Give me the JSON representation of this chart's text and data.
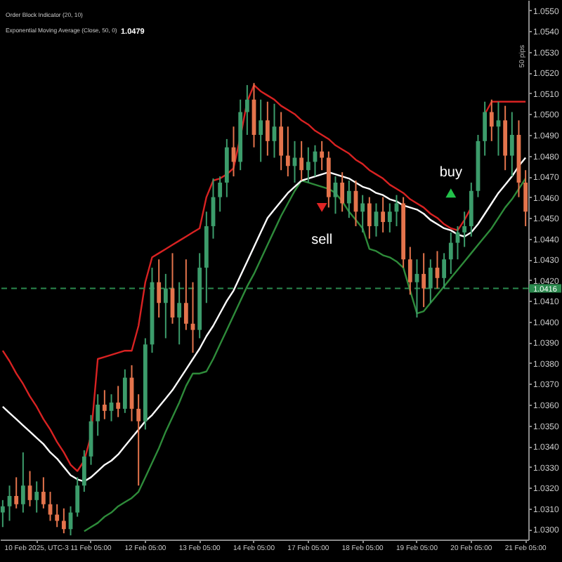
{
  "chart_data": {
    "type": "candlestick",
    "categories": [
      null,
      null,
      null,
      null,
      null,
      "10 Feb 2025, UTC-3",
      null,
      null,
      null,
      null,
      null,
      null,
      null,
      "11 Feb 05:00",
      null,
      null,
      null,
      null,
      null,
      null,
      null,
      "12 Feb 05:00",
      null,
      null,
      null,
      null,
      null,
      null,
      null,
      "13 Feb 05:00",
      null,
      null,
      null,
      null,
      null,
      null,
      null,
      "14 Feb 05:00",
      null,
      null,
      null,
      null,
      null,
      null,
      null,
      "17 Feb 05:00",
      null,
      null,
      null,
      null,
      null,
      null,
      null,
      "18 Feb 05:00",
      null,
      null,
      null,
      null,
      null,
      null,
      null,
      "19 Feb 05:00",
      null,
      null,
      null,
      null,
      null,
      null,
      null,
      "20 Feb 05:00",
      null,
      null,
      null,
      null,
      null,
      null,
      null,
      "21 Feb 05:00"
    ],
    "ohlc": [
      [
        1.0308,
        1.0314,
        1.0301,
        1.0311
      ],
      [
        1.0311,
        1.0321,
        1.0304,
        1.0316
      ],
      [
        1.0316,
        1.0325,
        1.031,
        1.0312
      ],
      [
        1.0312,
        1.0337,
        1.0308,
        1.0321
      ],
      [
        1.0321,
        1.0328,
        1.0311,
        1.0314
      ],
      [
        1.0314,
        1.0323,
        1.0308,
        1.0318
      ],
      [
        1.0318,
        1.0325,
        1.031,
        1.0312
      ],
      [
        1.0312,
        1.0318,
        1.0304,
        1.0307
      ],
      [
        1.0307,
        1.0312,
        1.0301,
        1.0304
      ],
      [
        1.0304,
        1.031,
        1.0298,
        1.03
      ],
      [
        1.03,
        1.0311,
        1.0297,
        1.0308
      ],
      [
        1.0308,
        1.0325,
        1.0306,
        1.0321
      ],
      [
        1.0321,
        1.0338,
        1.0318,
        1.0335
      ],
      [
        1.0335,
        1.0355,
        1.0331,
        1.0352
      ],
      [
        1.0352,
        1.0365,
        1.0345,
        1.036
      ],
      [
        1.036,
        1.0367,
        1.0353,
        1.0357
      ],
      [
        1.0357,
        1.0365,
        1.0352,
        1.0361
      ],
      [
        1.0361,
        1.0369,
        1.0354,
        1.0358
      ],
      [
        1.0358,
        1.0377,
        1.0356,
        1.0373
      ],
      [
        1.0373,
        1.0379,
        1.0352,
        1.0358
      ],
      [
        1.0358,
        1.0365,
        1.0321,
        1.0352
      ],
      [
        1.0352,
        1.0392,
        1.0348,
        1.0389
      ],
      [
        1.0389,
        1.0426,
        1.0385,
        1.0419
      ],
      [
        1.0419,
        1.043,
        1.0402,
        1.0409
      ],
      [
        1.0409,
        1.0423,
        1.0392,
        1.0416
      ],
      [
        1.0416,
        1.0433,
        1.0399,
        1.0402
      ],
      [
        1.0402,
        1.0419,
        1.0389,
        1.0409
      ],
      [
        1.0409,
        1.043,
        1.0396,
        1.0399
      ],
      [
        1.0399,
        1.0419,
        1.0385,
        1.0396
      ],
      [
        1.0396,
        1.0433,
        1.0392,
        1.0426
      ],
      [
        1.0426,
        1.0453,
        1.0409,
        1.0446
      ],
      [
        1.0446,
        1.0469,
        1.044,
        1.046
      ],
      [
        1.046,
        1.047,
        1.0453,
        1.0467
      ],
      [
        1.0467,
        1.0488,
        1.046,
        1.0484
      ],
      [
        1.0484,
        1.0494,
        1.047,
        1.0477
      ],
      [
        1.0477,
        1.0507,
        1.0473,
        1.0501
      ],
      [
        1.0501,
        1.0514,
        1.049,
        1.0507
      ],
      [
        1.0507,
        1.0515,
        1.0484,
        1.049
      ],
      [
        1.049,
        1.0507,
        1.0477,
        1.0497
      ],
      [
        1.0497,
        1.0506,
        1.048,
        1.0487
      ],
      [
        1.0487,
        1.0505,
        1.0479,
        1.0494
      ],
      [
        1.0494,
        1.0501,
        1.0473,
        1.048
      ],
      [
        1.048,
        1.0494,
        1.047,
        1.0475
      ],
      [
        1.0475,
        1.0487,
        1.0467,
        1.0479
      ],
      [
        1.0479,
        1.0487,
        1.0468,
        1.0473
      ],
      [
        1.0473,
        1.0484,
        1.0467,
        1.0477
      ],
      [
        1.0477,
        1.0485,
        1.047,
        1.0482
      ],
      [
        1.0482,
        1.0487,
        1.0473,
        1.0479
      ],
      [
        1.0479,
        1.0482,
        1.0455,
        1.046
      ],
      [
        1.046,
        1.047,
        1.0452,
        1.0467
      ],
      [
        1.0467,
        1.0472,
        1.0453,
        1.0457
      ],
      [
        1.0457,
        1.0468,
        1.045,
        1.0463
      ],
      [
        1.0463,
        1.0468,
        1.0446,
        1.0453
      ],
      [
        1.0453,
        1.0461,
        1.0443,
        1.0457
      ],
      [
        1.0457,
        1.046,
        1.044,
        1.0446
      ],
      [
        1.0446,
        1.0457,
        1.0441,
        1.0453
      ],
      [
        1.0453,
        1.046,
        1.0443,
        1.0448
      ],
      [
        1.0448,
        1.0457,
        1.0443,
        1.0453
      ],
      [
        1.0453,
        1.0461,
        1.0446,
        1.0457
      ],
      [
        1.0457,
        1.046,
        1.0426,
        1.043
      ],
      [
        1.043,
        1.0436,
        1.0413,
        1.0419
      ],
      [
        1.0419,
        1.043,
        1.0402,
        1.0423
      ],
      [
        1.0423,
        1.0433,
        1.0407,
        1.0416
      ],
      [
        1.0416,
        1.043,
        1.0409,
        1.0426
      ],
      [
        1.0426,
        1.0434,
        1.0416,
        1.0421
      ],
      [
        1.0421,
        1.0433,
        1.0416,
        1.043
      ],
      [
        1.043,
        1.0443,
        1.0423,
        1.0438
      ],
      [
        1.0438,
        1.0446,
        1.043,
        1.0443
      ],
      [
        1.0443,
        1.0453,
        1.0436,
        1.0446
      ],
      [
        1.0446,
        1.0467,
        1.0441,
        1.0463
      ],
      [
        1.0463,
        1.049,
        1.046,
        1.0487
      ],
      [
        1.0487,
        1.0506,
        1.048,
        1.0501
      ],
      [
        1.0501,
        1.0507,
        1.0487,
        1.0494
      ],
      [
        1.0494,
        1.0506,
        1.048,
        1.0497
      ],
      [
        1.0497,
        1.0504,
        1.0473,
        1.048
      ],
      [
        1.048,
        1.0501,
        1.047,
        1.049
      ],
      [
        1.049,
        1.0497,
        1.046,
        1.0467
      ],
      [
        1.0467,
        1.0473,
        1.0446,
        1.0453
      ]
    ],
    "colors": [
      "#3c9c6b",
      "#3c9c6b",
      "#e4744c",
      "#3c9c6b",
      "#e4744c",
      "#3c9c6b",
      "#e4744c",
      "#e4744c",
      "#e4744c",
      "#e4744c",
      "#3c9c6b",
      "#3c9c6b",
      "#3c9c6b",
      "#3c9c6b",
      "#3c9c6b",
      "#e4744c",
      "#3c9c6b",
      "#e4744c",
      "#3c9c6b",
      "#e4744c",
      "#e4744c",
      "#3c9c6b",
      "#3c9c6b",
      "#e4744c",
      "#3c9c6b",
      "#e4744c",
      "#3c9c6b",
      "#e4744c",
      "#e4744c",
      "#3c9c6b",
      "#3c9c6b",
      "#3c9c6b",
      "#3c9c6b",
      "#3c9c6b",
      "#e4744c",
      "#3c9c6b",
      "#3c9c6b",
      "#e4744c",
      "#3c9c6b",
      "#e4744c",
      "#3c9c6b",
      "#e4744c",
      "#e4744c",
      "#3c9c6b",
      "#e4744c",
      "#3c9c6b",
      "#3c9c6b",
      "#e4744c",
      "#e4744c",
      "#3c9c6b",
      "#e4744c",
      "#3c9c6b",
      "#e4744c",
      "#3c9c6b",
      "#e4744c",
      "#3c9c6b",
      "#e4744c",
      "#3c9c6b",
      "#3c9c6b",
      "#e4744c",
      "#e4744c",
      "#3c9c6b",
      "#e4744c",
      "#3c9c6b",
      "#e4744c",
      "#3c9c6b",
      "#3c9c6b",
      "#3c9c6b",
      "#3c9c6b",
      "#3c9c6b",
      "#3c9c6b",
      "#3c9c6b",
      "#e4744c",
      "#3c9c6b",
      "#e4744c",
      "#3c9c6b",
      "#e4744c",
      "#e4744c"
    ],
    "series": [
      {
        "type": "line",
        "color": "#d82222",
        "values": [
          1.0386,
          1.0381,
          1.0375,
          1.037,
          1.0364,
          1.0359,
          1.0353,
          1.0348,
          1.0342,
          1.0337,
          1.0331,
          1.0328,
          1.0333,
          1.0345,
          1.0382,
          1.0383,
          1.0384,
          1.0385,
          1.0386,
          1.0386,
          1.0398,
          1.0419,
          1.0431,
          1.0433,
          1.0435,
          1.0437,
          1.0439,
          1.0441,
          1.0443,
          1.0445,
          1.046,
          1.0468,
          1.0469,
          1.0471,
          1.0474,
          1.0489,
          1.0506,
          1.0514,
          1.0511,
          1.0509,
          1.0507,
          1.0504,
          1.0502,
          1.05,
          1.0497,
          1.0495,
          1.0492,
          1.049,
          1.0488,
          1.0485,
          1.0483,
          1.0481,
          1.0478,
          1.0476,
          1.0473,
          1.0471,
          1.0469,
          1.0466,
          1.0464,
          1.0462,
          1.0459,
          1.0457,
          1.0455,
          1.0452,
          1.045,
          1.0447,
          1.0445,
          1.0444,
          1.0449,
          1.0455,
          null,
          1.05,
          1.0506,
          1.0506,
          1.0506,
          1.0506,
          1.0506,
          1.0506
        ]
      },
      {
        "type": "line",
        "color": "#2e8b3a",
        "values": [
          null,
          null,
          null,
          null,
          null,
          null,
          null,
          null,
          null,
          null,
          null,
          null,
          1.0299,
          1.0301,
          1.0303,
          1.0306,
          1.0308,
          1.0311,
          1.0313,
          1.0315,
          1.0318,
          1.0325,
          1.0332,
          1.0339,
          1.0347,
          1.0354,
          1.0361,
          1.0369,
          1.0375,
          1.0375,
          1.0376,
          1.0382,
          1.0389,
          1.0396,
          1.0403,
          1.041,
          1.0417,
          1.0423,
          1.043,
          1.0437,
          1.0444,
          1.0451,
          1.0457,
          1.0463,
          1.0468,
          1.0467,
          1.0466,
          1.0465,
          1.0464,
          1.0462,
          1.0458,
          1.0453,
          1.0449,
          1.0445,
          1.0435,
          1.0434,
          1.0432,
          1.0431,
          1.0429,
          1.0426,
          1.0415,
          1.0404,
          1.0405,
          1.0409,
          1.0413,
          1.0417,
          1.0421,
          1.0425,
          1.0429,
          1.0433,
          1.0437,
          1.0441,
          1.0445,
          1.045,
          1.0455,
          1.0459,
          1.0464,
          1.0469
        ]
      },
      {
        "type": "line",
        "color": "#ffffff",
        "values": [
          1.0359,
          1.0356,
          1.0353,
          1.035,
          1.0347,
          1.0344,
          1.0341,
          1.0337,
          1.0334,
          1.033,
          1.0326,
          1.0324,
          1.0323,
          1.0325,
          1.0328,
          1.0331,
          1.0333,
          1.0336,
          1.034,
          1.0344,
          1.0348,
          1.0352,
          1.0355,
          1.0359,
          1.0363,
          1.0367,
          1.0372,
          1.0377,
          1.0382,
          1.0387,
          1.0393,
          1.0398,
          1.0404,
          1.041,
          1.0415,
          1.0422,
          1.0429,
          1.0436,
          1.0443,
          1.045,
          1.0454,
          1.0458,
          1.0462,
          1.0465,
          1.0468,
          1.0469,
          1.047,
          1.0471,
          1.0472,
          1.0471,
          1.047,
          1.0469,
          1.0467,
          1.0465,
          1.0464,
          1.0462,
          1.0461,
          1.0459,
          1.0458,
          1.0456,
          1.0455,
          1.0454,
          1.0452,
          1.0449,
          1.0447,
          1.0445,
          1.0444,
          1.0442,
          1.0441,
          1.0443,
          1.0447,
          1.0452,
          1.0457,
          1.0462,
          1.0466,
          1.047,
          1.0475,
          1.0479
        ]
      },
      {
        "type": "scatter",
        "name": "sell",
        "color": "#e02424",
        "marker": "triangle-down",
        "values": [
          null,
          null,
          null,
          null,
          null,
          null,
          null,
          null,
          null,
          null,
          null,
          null,
          null,
          null,
          null,
          null,
          null,
          null,
          null,
          null,
          null,
          null,
          null,
          null,
          null,
          null,
          null,
          null,
          null,
          null,
          null,
          null,
          null,
          null,
          null,
          null,
          null,
          null,
          null,
          null,
          null,
          null,
          null,
          null,
          null,
          null,
          null,
          1.0455,
          null,
          null,
          null,
          null,
          null,
          null,
          null,
          null,
          null,
          null,
          null,
          null,
          null,
          null,
          null,
          null,
          null,
          null,
          null,
          null,
          null,
          null,
          null,
          null,
          null,
          null,
          null,
          null,
          null,
          null
        ]
      },
      {
        "type": "scatter",
        "name": "buy",
        "color": "#22c24a",
        "marker": "triangle",
        "values": [
          null,
          null,
          null,
          null,
          null,
          null,
          null,
          null,
          null,
          null,
          null,
          null,
          null,
          null,
          null,
          null,
          null,
          null,
          null,
          null,
          null,
          null,
          null,
          null,
          null,
          null,
          null,
          null,
          null,
          null,
          null,
          null,
          null,
          null,
          null,
          null,
          null,
          null,
          null,
          null,
          null,
          null,
          null,
          null,
          null,
          null,
          null,
          null,
          null,
          null,
          null,
          null,
          null,
          null,
          null,
          null,
          null,
          null,
          null,
          null,
          null,
          null,
          null,
          null,
          null,
          null,
          1.0462,
          null,
          null,
          null,
          null,
          null,
          null,
          null,
          null,
          null,
          null,
          null
        ]
      }
    ],
    "ylim": [
      1.0295,
      1.0555
    ],
    "yticks": [
      {
        "value": 1.03,
        "label": "1.0300"
      },
      {
        "value": 1.031,
        "label": "1.0310"
      },
      {
        "value": 1.032,
        "label": "1.0320"
      },
      {
        "value": 1.033,
        "label": "1.0330"
      },
      {
        "value": 1.034,
        "label": "1.0340"
      },
      {
        "value": 1.035,
        "label": "1.0350"
      },
      {
        "value": 1.036,
        "label": "1.0360"
      },
      {
        "value": 1.037,
        "label": "1.0370"
      },
      {
        "value": 1.038,
        "label": "1.0380"
      },
      {
        "value": 1.039,
        "label": "1.0390"
      },
      {
        "value": 1.04,
        "label": "1.0400"
      },
      {
        "value": 1.041,
        "label": "1.0410"
      },
      {
        "value": 1.042,
        "label": "1.0420"
      },
      {
        "value": 1.043,
        "label": "1.0430"
      },
      {
        "value": 1.044,
        "label": "1.0440"
      },
      {
        "value": 1.045,
        "label": "1.0450"
      },
      {
        "value": 1.046,
        "label": "1.0460"
      },
      {
        "value": 1.047,
        "label": "1.0470"
      },
      {
        "value": 1.048,
        "label": "1.0480"
      },
      {
        "value": 1.049,
        "label": "1.0490"
      },
      {
        "value": 1.05,
        "label": "1.0500"
      },
      {
        "value": 1.051,
        "label": "1.0510"
      },
      {
        "value": 1.052,
        "label": "1.0520"
      },
      {
        "value": 1.053,
        "label": "1.0530"
      },
      {
        "value": 1.054,
        "label": "1.0540"
      },
      {
        "value": 1.055,
        "label": "1.0550"
      }
    ],
    "ref_lines": [
      {
        "axis": "y",
        "value": 1.0416,
        "label": "1.0416",
        "color": "#2b8a4e",
        "line_style": "dashed"
      }
    ],
    "annotations": [
      "Order Block Indicator (20, 10)",
      "Exponential Moving Average (Close, 50, 0)",
      "1.0479",
      "50 pips"
    ]
  }
}
